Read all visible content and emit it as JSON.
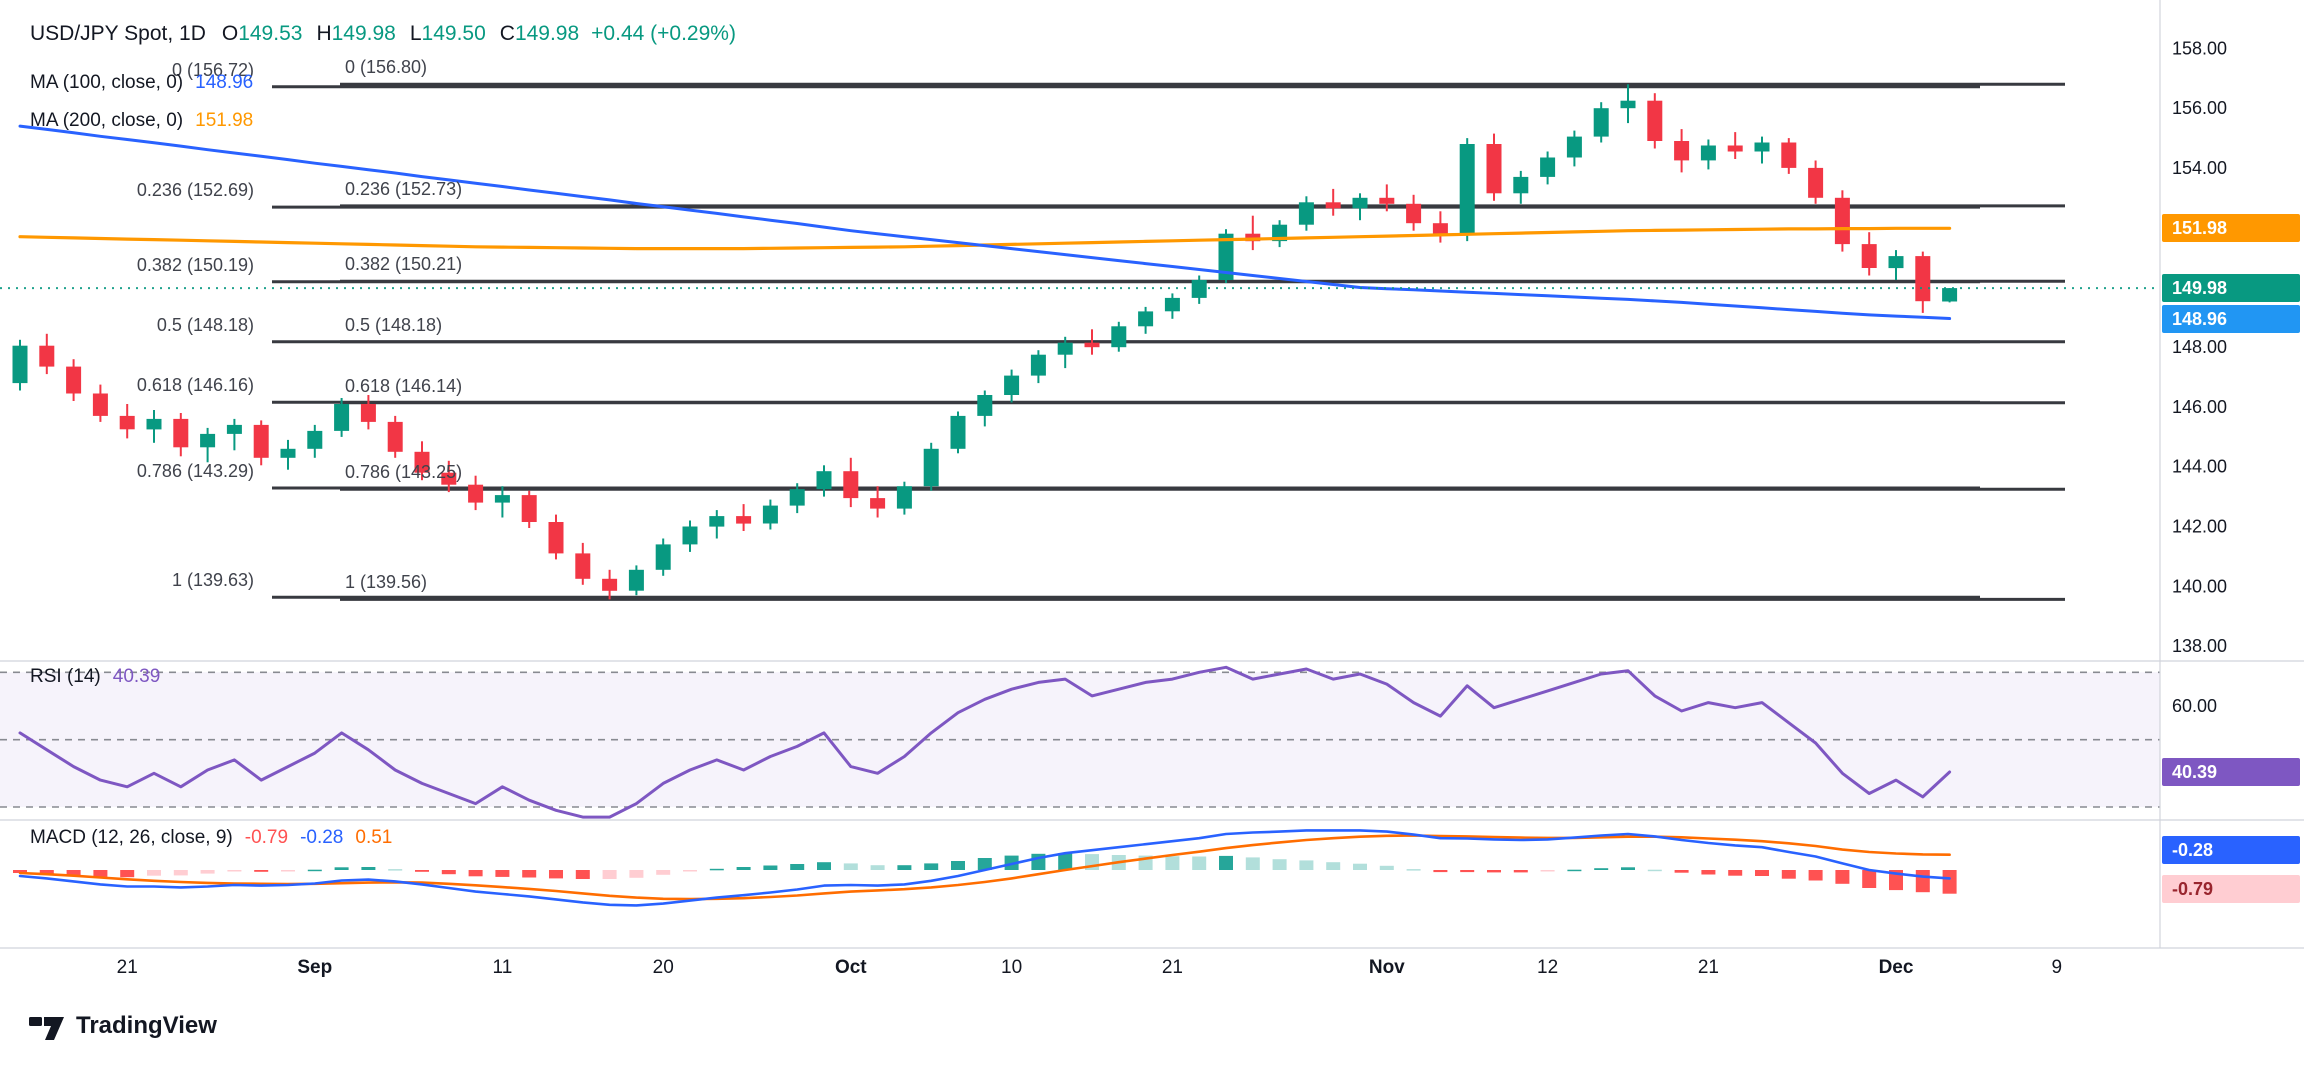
{
  "legend": {
    "symbol": "USD/JPY Spot, 1D",
    "o_label": "O",
    "o": "149.53",
    "h_label": "H",
    "h": "149.98",
    "l_label": "L",
    "l": "149.50",
    "c_label": "C",
    "c": "149.98",
    "change": "+0.44 (+0.29%)"
  },
  "ma100_legend": {
    "label": "MA (100, close, 0)",
    "value": "148.96"
  },
  "ma200_legend": {
    "label": "MA (200, close, 0)",
    "value": "151.98"
  },
  "rsi_legend": {
    "label": "RSI (14)",
    "value": "40.39"
  },
  "macd_legend": {
    "label": "MACD (12, 26, close, 9)",
    "hist": "-0.79",
    "macd": "-0.28",
    "signal": "0.51"
  },
  "badges": {
    "ma200": "151.98",
    "price": "149.98",
    "ma100": "148.96",
    "rsi": "40.39",
    "macd": "-0.28",
    "hist": "-0.79"
  },
  "logo": {
    "text": "TradingView"
  },
  "colors": {
    "up": "#089981",
    "down": "#F23645",
    "ma100": "#2962FF",
    "ma200": "#FF9800",
    "price_badge": "#089981",
    "ma100_badge": "#2196F3",
    "ma200_badge": "#FF9800",
    "rsi": "#7E57C2",
    "rsi_badge": "#7E57C2",
    "macd": "#2962FF",
    "macd_signal": "#FF6D00",
    "macd_badge": "#2962FF",
    "hist_badge_bg": "#FFCDD2",
    "hist_badge_text": "#99252E",
    "hist_grow_above": "#26A69A",
    "hist_fall_above": "#B2DFDB",
    "hist_fall_below": "#FF5252",
    "hist_grow_below": "#FFCDD2",
    "fib_line": "#383A40",
    "axis_text": "#131722",
    "legend_hist_value": "#FF5252"
  },
  "chart_data": {
    "type": "candlestick",
    "title": "USD/JPY Spot, 1D",
    "price_axis": {
      "min": 137.7,
      "max": 159.62
    },
    "price_ticks": [
      {
        "label": "158.00",
        "price": 158
      },
      {
        "label": "156.00",
        "price": 156
      },
      {
        "label": "154.00",
        "price": 154
      },
      {
        "label": "148.00",
        "price": 148
      },
      {
        "label": "146.00",
        "price": 146
      },
      {
        "label": "144.00",
        "price": 144
      },
      {
        "label": "142.00",
        "price": 142
      },
      {
        "label": "140.00",
        "price": 140
      },
      {
        "label": "138.00",
        "price": 138
      }
    ],
    "x_ticks": [
      {
        "label": "21",
        "index": 4,
        "major": false
      },
      {
        "label": "Sep",
        "index": 11,
        "major": true
      },
      {
        "label": "11",
        "index": 18,
        "major": false
      },
      {
        "label": "20",
        "index": 24,
        "major": false
      },
      {
        "label": "Oct",
        "index": 31,
        "major": true
      },
      {
        "label": "10",
        "index": 37,
        "major": false
      },
      {
        "label": "21",
        "index": 43,
        "major": false
      },
      {
        "label": "Nov",
        "index": 51,
        "major": true
      },
      {
        "label": "12",
        "index": 57,
        "major": false
      },
      {
        "label": "21",
        "index": 63,
        "major": false
      },
      {
        "label": "Dec",
        "index": 70,
        "major": true
      },
      {
        "label": "9",
        "index": 76,
        "major": false
      }
    ],
    "fib_sets": [
      {
        "items": [
          {
            "label": "0 (156.72)",
            "price": 156.72
          },
          {
            "label": "0.236 (152.69)",
            "price": 152.69
          },
          {
            "label": "0.382 (150.19)",
            "price": 150.19
          },
          {
            "label": "0.5 (148.18)",
            "price": 148.18
          },
          {
            "label": "0.618 (146.16)",
            "price": 146.16
          },
          {
            "label": "0.786 (143.29)",
            "price": 143.29
          },
          {
            "label": "1 (139.63)",
            "price": 139.63
          }
        ]
      },
      {
        "items": [
          {
            "label": "0 (156.80)",
            "price": 156.8
          },
          {
            "label": "0.236 (152.73)",
            "price": 152.73
          },
          {
            "label": "0.382 (150.21)",
            "price": 150.21
          },
          {
            "label": "0.5 (148.18)",
            "price": 148.18
          },
          {
            "label": "0.618 (146.14)",
            "price": 146.14
          },
          {
            "label": "0.786 (143.25)",
            "price": 143.25
          },
          {
            "label": "1 (139.56)",
            "price": 139.56
          }
        ]
      }
    ],
    "candles": [
      [
        146.8,
        148.25,
        146.55,
        148.05
      ],
      [
        148.05,
        148.45,
        147.1,
        147.35
      ],
      [
        147.35,
        147.6,
        146.2,
        146.45
      ],
      [
        146.45,
        146.75,
        145.5,
        145.7
      ],
      [
        145.7,
        146.1,
        144.95,
        145.25
      ],
      [
        145.25,
        145.9,
        144.8,
        145.6
      ],
      [
        145.6,
        145.8,
        144.35,
        144.65
      ],
      [
        144.65,
        145.3,
        144.15,
        145.1
      ],
      [
        145.1,
        145.6,
        144.55,
        145.4
      ],
      [
        145.4,
        145.55,
        144.05,
        144.3
      ],
      [
        144.3,
        144.9,
        143.9,
        144.6
      ],
      [
        144.6,
        145.4,
        144.3,
        145.2
      ],
      [
        145.2,
        146.3,
        145.0,
        146.1
      ],
      [
        146.1,
        146.4,
        145.25,
        145.5
      ],
      [
        145.5,
        145.7,
        144.3,
        144.5
      ],
      [
        144.5,
        144.85,
        143.55,
        143.8
      ],
      [
        143.8,
        144.2,
        143.15,
        143.4
      ],
      [
        143.4,
        143.7,
        142.55,
        142.8
      ],
      [
        142.8,
        143.35,
        142.3,
        143.05
      ],
      [
        143.05,
        143.2,
        141.95,
        142.15
      ],
      [
        142.15,
        142.4,
        140.9,
        141.1
      ],
      [
        141.1,
        141.45,
        140.05,
        140.25
      ],
      [
        140.25,
        140.55,
        139.56,
        139.85
      ],
      [
        139.85,
        140.7,
        139.7,
        140.55
      ],
      [
        140.55,
        141.6,
        140.35,
        141.4
      ],
      [
        141.4,
        142.2,
        141.15,
        142.0
      ],
      [
        142.0,
        142.55,
        141.6,
        142.35
      ],
      [
        142.35,
        142.75,
        141.85,
        142.1
      ],
      [
        142.1,
        142.9,
        141.9,
        142.7
      ],
      [
        142.7,
        143.45,
        142.45,
        143.25
      ],
      [
        143.25,
        144.05,
        143.0,
        143.85
      ],
      [
        143.85,
        144.3,
        142.65,
        142.95
      ],
      [
        142.95,
        143.35,
        142.3,
        142.6
      ],
      [
        142.6,
        143.5,
        142.4,
        143.35
      ],
      [
        143.35,
        144.8,
        143.2,
        144.6
      ],
      [
        144.6,
        145.85,
        144.45,
        145.7
      ],
      [
        145.7,
        146.55,
        145.35,
        146.4
      ],
      [
        146.4,
        147.25,
        146.15,
        147.05
      ],
      [
        147.05,
        147.9,
        146.8,
        147.75
      ],
      [
        147.75,
        148.35,
        147.3,
        148.15
      ],
      [
        148.15,
        148.6,
        147.75,
        148.0
      ],
      [
        148.0,
        148.85,
        147.85,
        148.7
      ],
      [
        148.7,
        149.35,
        148.45,
        149.2
      ],
      [
        149.2,
        149.8,
        148.95,
        149.65
      ],
      [
        149.65,
        150.4,
        149.45,
        150.25
      ],
      [
        150.25,
        151.95,
        150.15,
        151.8
      ],
      [
        151.8,
        152.4,
        151.25,
        151.55
      ],
      [
        151.55,
        152.25,
        151.35,
        152.1
      ],
      [
        152.1,
        153.05,
        151.9,
        152.85
      ],
      [
        152.85,
        153.3,
        152.4,
        152.65
      ],
      [
        152.65,
        153.15,
        152.25,
        153.0
      ],
      [
        153.0,
        153.45,
        152.55,
        152.8
      ],
      [
        152.8,
        153.1,
        151.9,
        152.15
      ],
      [
        152.15,
        152.55,
        151.5,
        151.75
      ],
      [
        151.75,
        155.0,
        151.55,
        154.8
      ],
      [
        154.8,
        155.15,
        152.9,
        153.15
      ],
      [
        153.15,
        153.9,
        152.8,
        153.7
      ],
      [
        153.7,
        154.55,
        153.45,
        154.35
      ],
      [
        154.35,
        155.25,
        154.05,
        155.05
      ],
      [
        155.05,
        156.2,
        154.85,
        156.0
      ],
      [
        156.0,
        156.8,
        155.5,
        156.25
      ],
      [
        156.25,
        156.5,
        154.65,
        154.9
      ],
      [
        154.9,
        155.3,
        153.85,
        154.25
      ],
      [
        154.25,
        154.95,
        153.95,
        154.75
      ],
      [
        154.75,
        155.2,
        154.3,
        154.55
      ],
      [
        154.55,
        155.05,
        154.15,
        154.85
      ],
      [
        154.85,
        155.0,
        153.8,
        154.0
      ],
      [
        154.0,
        154.25,
        152.8,
        153.0
      ],
      [
        153.0,
        153.25,
        151.2,
        151.45
      ],
      [
        151.45,
        151.85,
        150.4,
        150.65
      ],
      [
        150.65,
        151.25,
        150.25,
        151.05
      ],
      [
        151.05,
        151.2,
        149.15,
        149.54
      ],
      [
        149.53,
        149.98,
        149.5,
        149.98
      ]
    ],
    "ma100": [
      155.4,
      155.29,
      155.18,
      155.06,
      154.95,
      154.84,
      154.73,
      154.61,
      154.5,
      154.39,
      154.28,
      154.16,
      154.05,
      153.94,
      153.83,
      153.71,
      153.6,
      153.49,
      153.38,
      153.26,
      153.15,
      153.04,
      152.93,
      152.81,
      152.7,
      152.59,
      152.48,
      152.36,
      152.25,
      152.14,
      152.02,
      151.9,
      151.8,
      151.7,
      151.6,
      151.5,
      151.4,
      151.3,
      151.2,
      151.1,
      151.0,
      150.9,
      150.8,
      150.7,
      150.6,
      150.5,
      150.4,
      150.3,
      150.2,
      150.1,
      150.0,
      149.96,
      149.92,
      149.88,
      149.84,
      149.8,
      149.76,
      149.72,
      149.68,
      149.64,
      149.6,
      149.55,
      149.5,
      149.44,
      149.38,
      149.32,
      149.26,
      149.2,
      149.14,
      149.08,
      149.04,
      149.0,
      148.96
    ],
    "ma200": [
      151.7,
      151.68,
      151.66,
      151.64,
      151.62,
      151.6,
      151.58,
      151.56,
      151.54,
      151.52,
      151.5,
      151.48,
      151.46,
      151.44,
      151.42,
      151.4,
      151.38,
      151.36,
      151.35,
      151.34,
      151.33,
      151.32,
      151.31,
      151.3,
      151.3,
      151.3,
      151.3,
      151.3,
      151.31,
      151.32,
      151.33,
      151.34,
      151.35,
      151.36,
      151.38,
      151.4,
      151.42,
      151.44,
      151.46,
      151.48,
      151.5,
      151.52,
      151.54,
      151.56,
      151.58,
      151.6,
      151.62,
      151.64,
      151.66,
      151.68,
      151.7,
      151.72,
      151.74,
      151.76,
      151.78,
      151.8,
      151.82,
      151.84,
      151.86,
      151.88,
      151.9,
      151.91,
      151.92,
      151.93,
      151.94,
      151.95,
      151.96,
      151.96,
      151.97,
      151.97,
      151.98,
      151.98,
      151.98
    ],
    "rsi": {
      "values": [
        52,
        47,
        42,
        38,
        36,
        40,
        36,
        41,
        44,
        38,
        42,
        46,
        52,
        47,
        41,
        37,
        34,
        31,
        36,
        32,
        29,
        27,
        27,
        31,
        37,
        41,
        44,
        41,
        45,
        48,
        52,
        42,
        40,
        45,
        52,
        58,
        62,
        65,
        67,
        68,
        63,
        65,
        67,
        68,
        70,
        71.5,
        68,
        69.5,
        71,
        68,
        69.5,
        66.5,
        61,
        57,
        66,
        59.5,
        62,
        64.5,
        67,
        69.5,
        70.5,
        63,
        58.5,
        61,
        59.5,
        61,
        55,
        49,
        40,
        34,
        38,
        33,
        40.39
      ],
      "levels": [
        70,
        50,
        30
      ],
      "axis_tick": {
        "label": "60.00",
        "value": 60
      },
      "current": 40.39
    },
    "macd": {
      "macd_line": [
        -0.2,
        -0.28,
        -0.38,
        -0.48,
        -0.55,
        -0.55,
        -0.58,
        -0.55,
        -0.5,
        -0.52,
        -0.5,
        -0.45,
        -0.35,
        -0.32,
        -0.38,
        -0.48,
        -0.6,
        -0.72,
        -0.8,
        -0.88,
        -0.98,
        -1.08,
        -1.16,
        -1.18,
        -1.12,
        -1.02,
        -0.92,
        -0.84,
        -0.75,
        -0.65,
        -0.52,
        -0.5,
        -0.52,
        -0.48,
        -0.36,
        -0.2,
        0.0,
        0.2,
        0.4,
        0.56,
        0.66,
        0.76,
        0.86,
        0.96,
        1.06,
        1.2,
        1.25,
        1.28,
        1.32,
        1.32,
        1.32,
        1.28,
        1.18,
        1.06,
        1.05,
        1.02,
        1.0,
        1.02,
        1.08,
        1.15,
        1.2,
        1.12,
        1.0,
        0.9,
        0.82,
        0.76,
        0.6,
        0.45,
        0.22,
        0.0,
        -0.12,
        -0.22,
        -0.28
      ],
      "signal_line": [
        -0.1,
        -0.14,
        -0.19,
        -0.25,
        -0.31,
        -0.36,
        -0.4,
        -0.43,
        -0.45,
        -0.46,
        -0.47,
        -0.46,
        -0.44,
        -0.42,
        -0.41,
        -0.42,
        -0.46,
        -0.51,
        -0.57,
        -0.63,
        -0.7,
        -0.78,
        -0.86,
        -0.92,
        -0.96,
        -0.97,
        -0.96,
        -0.94,
        -0.9,
        -0.85,
        -0.78,
        -0.72,
        -0.68,
        -0.64,
        -0.58,
        -0.5,
        -0.4,
        -0.28,
        -0.14,
        0.0,
        0.13,
        0.26,
        0.38,
        0.5,
        0.61,
        0.73,
        0.83,
        0.92,
        1.0,
        1.06,
        1.11,
        1.14,
        1.15,
        1.13,
        1.12,
        1.1,
        1.08,
        1.07,
        1.07,
        1.09,
        1.11,
        1.11,
        1.09,
        1.05,
        1.01,
        0.96,
        0.89,
        0.8,
        0.68,
        0.6,
        0.55,
        0.52,
        0.51
      ],
      "current": {
        "hist": -0.79,
        "macd": -0.28,
        "signal": 0.51
      }
    },
    "last_price": 149.98
  }
}
